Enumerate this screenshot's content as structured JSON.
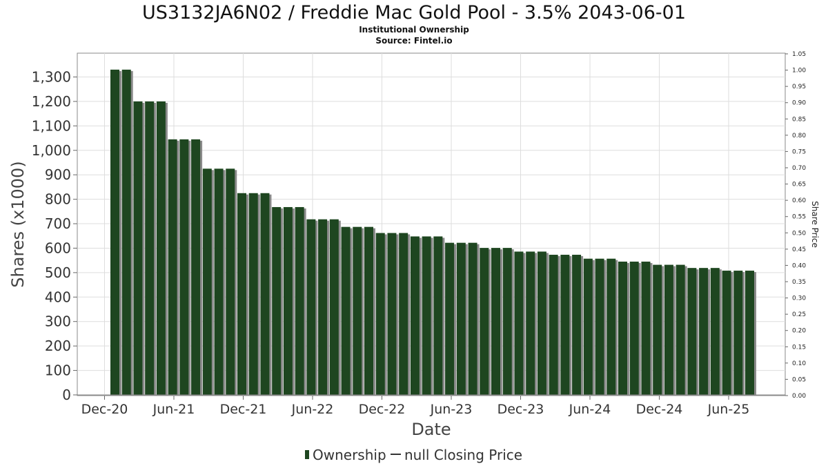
{
  "chart_data": {
    "type": "bar",
    "title": "US3132JA6N02 / Freddie Mac Gold Pool - 3.5% 2043-06-01",
    "subtitle_line1": "Institutional Ownership",
    "subtitle_line2": "Source: Fintel.io",
    "xlabel": "Date",
    "ylabel": "Shares (x1000)",
    "y2label": "Share Price",
    "ylim": [
      0,
      1400
    ],
    "y2lim": [
      0,
      1.05
    ],
    "yticks": [
      "0",
      "100",
      "200",
      "300",
      "400",
      "500",
      "600",
      "700",
      "800",
      "900",
      "1,000",
      "1,100",
      "1,200",
      "1,300"
    ],
    "y2ticks": [
      "0.00",
      "0.05",
      "0.10",
      "0.15",
      "0.20",
      "0.25",
      "0.30",
      "0.35",
      "0.40",
      "0.45",
      "0.50",
      "0.55",
      "0.60",
      "0.65",
      "0.70",
      "0.75",
      "0.80",
      "0.85",
      "0.90",
      "0.95",
      "1.00",
      "1.05"
    ],
    "xticks": [
      "Dec-20",
      "Jun-21",
      "Dec-21",
      "Jun-22",
      "Dec-22",
      "Jun-23",
      "Dec-23",
      "Jun-24",
      "Dec-24",
      "Jun-25"
    ],
    "grid": true,
    "legend_position": "bottom",
    "series": [
      {
        "name": "Ownership",
        "color": "#1e4620",
        "values": [
          1330,
          1330,
          1200,
          1200,
          1200,
          1045,
          1045,
          1045,
          925,
          925,
          925,
          825,
          825,
          825,
          768,
          768,
          768,
          718,
          718,
          718,
          687,
          687,
          687,
          662,
          662,
          662,
          648,
          648,
          648,
          622,
          622,
          622,
          601,
          601,
          601,
          586,
          586,
          586,
          573,
          573,
          573,
          557,
          557,
          557,
          545,
          545,
          545,
          532,
          532,
          532,
          519,
          519,
          519,
          508,
          508,
          508
        ]
      }
    ],
    "legend": [
      {
        "label": "Ownership",
        "color": "#1e4620",
        "marker": "bar"
      },
      {
        "label": "null Closing Price",
        "color": "#333333",
        "marker": "line"
      }
    ]
  }
}
